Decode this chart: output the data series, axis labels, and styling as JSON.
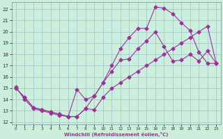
{
  "xlabel": "Windchill (Refroidissement éolien,°C)",
  "bg_color": "#cceedd",
  "grid_color": "#aacccc",
  "line_color": "#993399",
  "xlim": [
    -0.5,
    23.5
  ],
  "ylim": [
    11.8,
    22.6
  ],
  "yticks": [
    12,
    13,
    14,
    15,
    16,
    17,
    18,
    19,
    20,
    21,
    22
  ],
  "xticks": [
    0,
    1,
    2,
    3,
    4,
    5,
    6,
    7,
    8,
    9,
    10,
    11,
    12,
    13,
    14,
    15,
    16,
    17,
    18,
    19,
    20,
    21,
    22,
    23
  ],
  "line1_x": [
    0,
    1,
    2,
    3,
    4,
    5,
    6,
    7,
    8,
    9,
    10,
    11,
    12,
    13,
    14,
    15,
    16,
    17,
    18,
    19,
    20,
    21,
    22,
    23
  ],
  "line1_y": [
    15.0,
    14.2,
    13.3,
    13.1,
    12.9,
    12.7,
    12.5,
    12.5,
    13.2,
    13.1,
    14.2,
    15.0,
    15.5,
    16.0,
    16.5,
    17.0,
    17.5,
    18.0,
    18.5,
    19.0,
    19.5,
    20.0,
    20.5,
    17.2
  ],
  "line2_x": [
    0,
    1,
    2,
    3,
    4,
    5,
    6,
    7,
    8,
    9,
    10,
    11,
    12,
    13,
    14,
    15,
    16,
    17,
    18,
    19,
    20,
    21,
    22,
    23
  ],
  "line2_y": [
    15.1,
    14.0,
    13.2,
    13.0,
    12.8,
    12.6,
    12.5,
    14.9,
    14.0,
    14.3,
    15.5,
    16.5,
    17.5,
    17.6,
    18.5,
    19.2,
    20.0,
    18.7,
    17.4,
    17.5,
    18.0,
    17.4,
    18.3,
    17.2
  ],
  "line3_x": [
    0,
    1,
    2,
    3,
    4,
    5,
    6,
    7,
    8,
    9,
    10,
    11,
    12,
    13,
    14,
    15,
    16,
    17,
    18,
    19,
    20,
    21,
    22,
    23
  ],
  "line3_y": [
    15.0,
    14.2,
    13.3,
    13.1,
    12.9,
    12.7,
    12.5,
    12.5,
    13.2,
    14.3,
    15.5,
    17.0,
    18.5,
    19.5,
    20.3,
    20.3,
    22.2,
    22.1,
    21.6,
    20.8,
    20.1,
    18.2,
    17.2,
    17.2
  ]
}
